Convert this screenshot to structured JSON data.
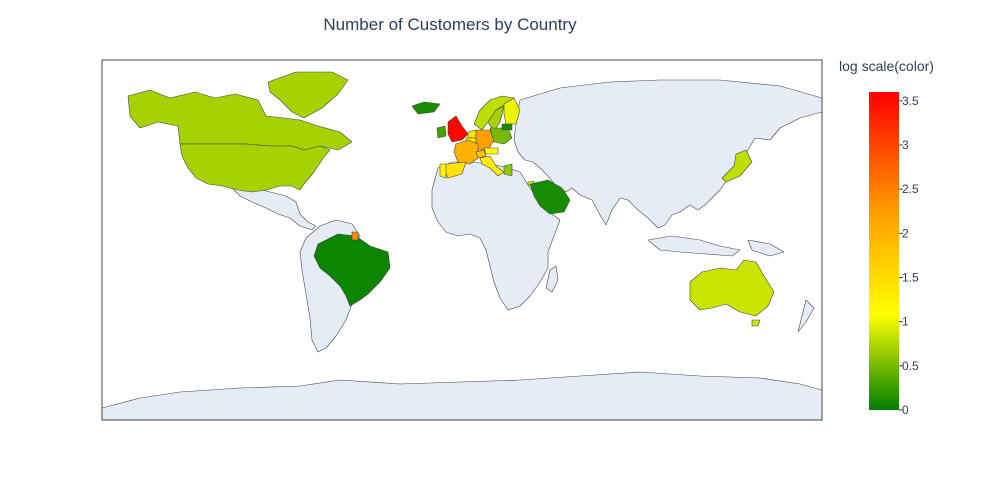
{
  "chart_data": {
    "type": "choropleth",
    "title": "Number of Customers by Country",
    "projection": "equirectangular",
    "land_color": "#e5ecf6",
    "border_color": "#444444",
    "colorbar": {
      "title": "log scale(color)",
      "min": 0,
      "max": 3.6,
      "ticks": [
        "0",
        "0.5",
        "1",
        "1.5",
        "2",
        "2.5",
        "3",
        "3.5"
      ],
      "tick_values": [
        0,
        0.5,
        1,
        1.5,
        2,
        2.5,
        3,
        3.5
      ],
      "colorscale": [
        [
          0,
          "#008000"
        ],
        [
          0.3,
          "#ffff00"
        ],
        [
          0.6,
          "#ffa500"
        ],
        [
          1,
          "#ff0000"
        ]
      ]
    },
    "countries": [
      {
        "country": "United Kingdom",
        "value": 3.55
      },
      {
        "country": "Canada",
        "value": 0.7
      },
      {
        "country": "United States",
        "value": 0.7
      },
      {
        "country": "Greenland",
        "value": 0.7
      },
      {
        "country": "Brazil",
        "value": 0.05
      },
      {
        "country": "French Guiana",
        "value": 2.4
      },
      {
        "country": "Saudi Arabia",
        "value": 0.1
      },
      {
        "country": "Australia",
        "value": 0.85
      },
      {
        "country": "Japan",
        "value": 0.8
      },
      {
        "country": "France",
        "value": 2.0
      },
      {
        "country": "Spain",
        "value": 1.4
      },
      {
        "country": "Portugal",
        "value": 1.2
      },
      {
        "country": "Germany",
        "value": 2.2
      },
      {
        "country": "Netherlands",
        "value": 1.4
      },
      {
        "country": "Belgium",
        "value": 1.3
      },
      {
        "country": "Ireland",
        "value": 0.3
      },
      {
        "country": "Norway",
        "value": 0.8
      },
      {
        "country": "Sweden",
        "value": 0.7
      },
      {
        "country": "Finland",
        "value": 1.0
      },
      {
        "country": "Iceland",
        "value": 0.1
      },
      {
        "country": "Poland",
        "value": 0.5
      },
      {
        "country": "Lithuania",
        "value": 0.1
      },
      {
        "country": "Italy",
        "value": 1.3
      },
      {
        "country": "Switzerland",
        "value": 1.8
      },
      {
        "country": "Austria",
        "value": 1.1
      },
      {
        "country": "Greece",
        "value": 0.6
      },
      {
        "country": "Cyprus",
        "value": 1.0
      }
    ]
  }
}
